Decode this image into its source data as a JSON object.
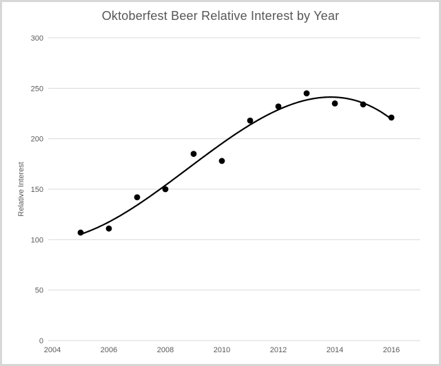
{
  "chart_data": {
    "type": "scatter",
    "title": "Oktoberfest Beer Relative Interest by Year",
    "xlabel": "",
    "ylabel": "Relative Interest",
    "x": [
      2005,
      2006,
      2007,
      2008,
      2009,
      2010,
      2011,
      2012,
      2013,
      2014,
      2015,
      2016
    ],
    "y": [
      107,
      111,
      142,
      150,
      185,
      178,
      218,
      232,
      245,
      235,
      234,
      221
    ],
    "xlim": [
      2004,
      2017
    ],
    "ylim": [
      0,
      300
    ],
    "x_ticks": [
      2004,
      2006,
      2008,
      2010,
      2012,
      2014,
      2016
    ],
    "y_ticks": [
      0,
      50,
      100,
      150,
      200,
      250,
      300
    ],
    "grid": "horizontal",
    "legend": "none",
    "trendline": {
      "type": "polynomial",
      "order": 3,
      "span": [
        2005,
        2016
      ]
    },
    "colors": {
      "point": "#000000",
      "trendline": "#000000",
      "gridline": "#d9d9d9",
      "tick_text": "#595959",
      "title_text": "#565656",
      "frame_border": "#d7d7d7",
      "background": "#ffffff"
    }
  }
}
